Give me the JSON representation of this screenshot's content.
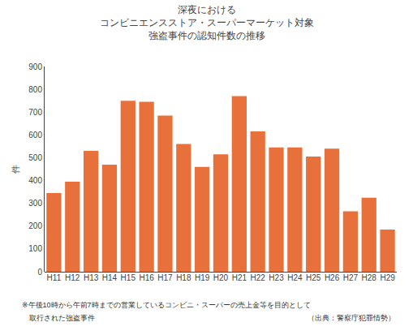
{
  "chart_data": {
    "type": "bar",
    "title": "深夜における\nコンビニエンスストア・スーパーマーケット対象\n強盗事件の認知件数の推移",
    "y_label": "件",
    "categories": [
      "H11",
      "H12",
      "H13",
      "H14",
      "H15",
      "H16",
      "H17",
      "H18",
      "H19",
      "H20",
      "H21",
      "H22",
      "H23",
      "H24",
      "H25",
      "H26",
      "H27",
      "H28",
      "H29"
    ],
    "values": [
      345,
      395,
      530,
      470,
      750,
      745,
      685,
      560,
      460,
      515,
      770,
      615,
      545,
      545,
      505,
      540,
      265,
      325,
      185
    ],
    "color": "#E8703A",
    "ylim": [
      0,
      900
    ],
    "yticks": [
      0,
      100,
      200,
      300,
      400,
      500,
      600,
      700,
      800,
      900
    ],
    "grid": false,
    "annotations": [
      "※午後10時から午前7時までの営業しているコンビニ・スーパーの売上金等を目的として",
      "　取行された強盗事件",
      "（出典：警察庁犯罪情勢）"
    ]
  }
}
